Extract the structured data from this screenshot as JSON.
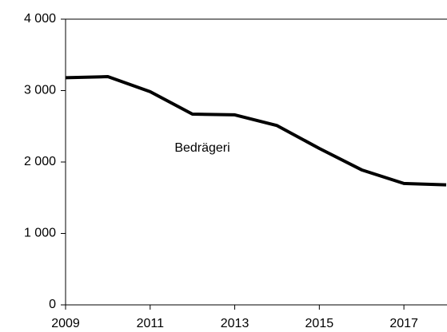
{
  "chart_data": {
    "type": "line",
    "x": [
      2009,
      2010,
      2011,
      2012,
      2013,
      2014,
      2015,
      2016,
      2017,
      2018
    ],
    "series": [
      {
        "name": "Bedrägeri",
        "color": "#000000",
        "values": [
          3180,
          3195,
          2985,
          2670,
          2660,
          2510,
          2190,
          1890,
          1700,
          1680
        ]
      }
    ],
    "xlim": [
      2009,
      2018
    ],
    "xticks": [
      2009,
      2011,
      2013,
      2015,
      2017
    ],
    "ylim": [
      0,
      4000
    ],
    "yticks": [
      0,
      {
        "value": 1000,
        "label": "1 000"
      },
      {
        "value": 2000,
        "label": "2 000"
      },
      {
        "value": 3000,
        "label": "3 000"
      },
      {
        "value": 4000,
        "label": "4 000"
      }
    ],
    "grid": false
  }
}
